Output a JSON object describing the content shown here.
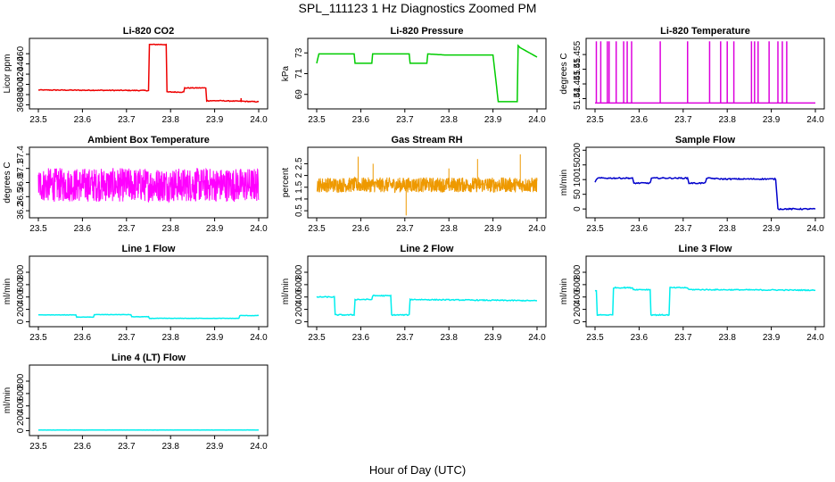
{
  "title": "SPL_111123  1 Hz Diagnostics Zoomed PM",
  "xlabel": "Hour of Day (UTC)",
  "chart_data": [
    {
      "type": "line",
      "title": "Li-820 CO2",
      "ylabel": "Licor ppm",
      "xlim": [
        23.5,
        24.0
      ],
      "ylim": [
        352,
        490
      ],
      "yticks": [
        360,
        380,
        400,
        420,
        440,
        460
      ],
      "xticks": [
        "23.5",
        "23.6",
        "23.7",
        "23.8",
        "23.9",
        "24.0"
      ],
      "color": "#ee0000",
      "noise": 0.8,
      "spikes": [
        [
          23.96,
          373
        ]
      ],
      "x": [
        23.5,
        23.75,
        23.752,
        23.79,
        23.792,
        23.83,
        23.832,
        23.88,
        23.882,
        23.91,
        24.0
      ],
      "y": [
        389,
        388,
        478,
        478,
        385,
        385,
        393,
        393,
        368,
        368,
        366
      ]
    },
    {
      "type": "line",
      "title": "Li-820 Pressure",
      "ylabel": "kPa",
      "xlim": [
        23.5,
        24.0
      ],
      "ylim": [
        67.6,
        74.4
      ],
      "yticks": [
        69,
        71,
        73
      ],
      "xticks": [
        "23.5",
        "23.6",
        "23.7",
        "23.8",
        "23.9",
        "24.0"
      ],
      "color": "#00cc00",
      "noise": 0,
      "x": [
        23.5,
        23.505,
        23.585,
        23.587,
        23.625,
        23.627,
        23.71,
        23.712,
        23.75,
        23.752,
        23.79,
        23.9,
        23.912,
        23.955,
        23.957,
        23.962,
        24.0
      ],
      "y": [
        72.0,
        72.9,
        72.9,
        72.0,
        72.0,
        72.9,
        72.9,
        72.0,
        72.0,
        72.9,
        72.8,
        72.8,
        68.3,
        68.3,
        73.7,
        73.5,
        72.6
      ]
    },
    {
      "type": "line",
      "title": "Li-820 Temperature",
      "ylabel": "degrees C",
      "xlim": [
        23.5,
        24.0
      ],
      "ylim": [
        51.4365,
        51.4605
      ],
      "yticks": [
        51.44,
        51.445,
        51.45,
        51.455
      ],
      "xticks": [
        "23.5",
        "23.6",
        "23.7",
        "23.8",
        "23.9",
        "24.0"
      ],
      "color": "#dd00dd",
      "noise": 0,
      "base": 51.4385,
      "spikes_top": 51.4595,
      "spike_x": [
        23.503,
        23.513,
        23.528,
        23.532,
        23.548,
        23.565,
        23.573,
        23.583,
        23.648,
        23.71,
        23.76,
        23.785,
        23.8,
        23.815,
        23.855,
        23.862,
        23.87,
        23.895,
        23.915,
        23.925,
        23.935
      ]
    },
    {
      "type": "noise",
      "title": "Ambient Box Temperature",
      "ylabel": "degrees C",
      "xlim": [
        23.5,
        24.0
      ],
      "ylim": [
        36.05,
        37.55
      ],
      "yticks": [
        36.2,
        36.5,
        36.8,
        37.1,
        37.4
      ],
      "xticks": [
        "23.5",
        "23.6",
        "23.7",
        "23.8",
        "23.9",
        "24.0"
      ],
      "color": "#ff00ff",
      "center": 36.75,
      "amp": 0.36,
      "n": 900
    },
    {
      "type": "noise",
      "title": "Gas Stream RH",
      "ylabel": "percent",
      "xlim": [
        23.5,
        24.0
      ],
      "ylim": [
        0.2,
        3.2
      ],
      "yticks": [
        0.5,
        1.0,
        1.5,
        2.0,
        2.5
      ],
      "xticks": [
        "23.5",
        "23.6",
        "23.7",
        "23.8",
        "23.9",
        "24.0"
      ],
      "color": "#ee9900",
      "center": 1.6,
      "amp": 0.32,
      "n": 900,
      "spikes": [
        [
          23.594,
          2.8
        ],
        [
          23.703,
          0.3
        ],
        [
          23.865,
          2.7
        ],
        [
          23.962,
          2.9
        ],
        [
          23.628,
          2.5
        ],
        [
          23.8,
          2.3
        ]
      ]
    },
    {
      "type": "line",
      "title": "Sample Flow",
      "ylabel": "ml/min",
      "xlim": [
        23.5,
        24.0
      ],
      "ylim": [
        -30,
        210
      ],
      "yticks": [
        0,
        50,
        100,
        150,
        200
      ],
      "xticks": [
        "23.5",
        "23.6",
        "23.7",
        "23.8",
        "23.9",
        "24.0"
      ],
      "color": "#0000cc",
      "noise": 2,
      "x": [
        23.5,
        23.505,
        23.585,
        23.588,
        23.625,
        23.628,
        23.71,
        23.713,
        23.75,
        23.753,
        23.79,
        23.91,
        23.915,
        24.0
      ],
      "y": [
        90,
        105,
        105,
        88,
        88,
        105,
        105,
        88,
        88,
        105,
        102,
        102,
        0,
        0
      ]
    },
    {
      "type": "line",
      "title": "Line 1 Flow",
      "ylabel": "ml/min",
      "xlim": [
        23.5,
        24.0
      ],
      "ylim": [
        -80,
        1060
      ],
      "yticks": [
        0,
        200,
        400,
        600,
        800
      ],
      "xticks": [
        "23.5",
        "23.6",
        "23.7",
        "23.8",
        "23.9",
        "24.0"
      ],
      "color": "#00eeee",
      "noise": 3,
      "x": [
        23.5,
        23.585,
        23.587,
        23.625,
        23.627,
        23.71,
        23.712,
        23.75,
        23.752,
        23.955,
        23.957,
        24.0
      ],
      "y": [
        110,
        110,
        75,
        75,
        115,
        115,
        80,
        80,
        55,
        55,
        100,
        100
      ]
    },
    {
      "type": "line",
      "title": "Line 2 Flow",
      "ylabel": "ml/min",
      "xlim": [
        23.5,
        24.0
      ],
      "ylim": [
        -80,
        1060
      ],
      "yticks": [
        0,
        200,
        400,
        600,
        800
      ],
      "xticks": [
        "23.5",
        "23.6",
        "23.7",
        "23.8",
        "23.9",
        "24.0"
      ],
      "color": "#00eeee",
      "noise": 8,
      "x": [
        23.5,
        23.54,
        23.542,
        23.585,
        23.587,
        23.625,
        23.627,
        23.668,
        23.67,
        23.71,
        23.712,
        24.0
      ],
      "y": [
        400,
        400,
        110,
        110,
        360,
        360,
        420,
        420,
        110,
        110,
        360,
        340
      ]
    },
    {
      "type": "line",
      "title": "Line 3 Flow",
      "ylabel": "ml/min",
      "xlim": [
        23.5,
        24.0
      ],
      "ylim": [
        -80,
        1060
      ],
      "yticks": [
        0,
        200,
        400,
        600,
        800
      ],
      "xticks": [
        "23.5",
        "23.6",
        "23.7",
        "23.8",
        "23.9",
        "24.0"
      ],
      "color": "#00eeee",
      "noise": 8,
      "x": [
        23.5,
        23.503,
        23.505,
        23.54,
        23.542,
        23.585,
        23.587,
        23.625,
        23.627,
        23.668,
        23.67,
        23.71,
        23.712,
        24.0
      ],
      "y": [
        500,
        500,
        110,
        110,
        550,
        550,
        520,
        520,
        110,
        110,
        550,
        550,
        520,
        510
      ]
    },
    {
      "type": "line",
      "title": "Line 4 (LT) Flow",
      "ylabel": "ml/min",
      "xlim": [
        23.5,
        24.0
      ],
      "ylim": [
        -80,
        1060
      ],
      "yticks": [
        0,
        200,
        400,
        600,
        800
      ],
      "xticks": [
        "23.5",
        "23.6",
        "23.7",
        "23.8",
        "23.9",
        "24.0"
      ],
      "color": "#00eeee",
      "noise": 2,
      "x": [
        23.5,
        24.0
      ],
      "y": [
        10,
        10
      ]
    }
  ]
}
